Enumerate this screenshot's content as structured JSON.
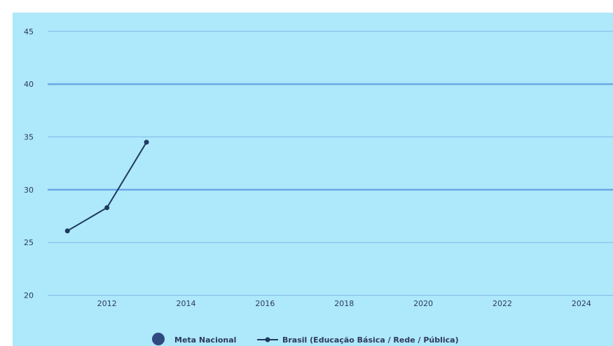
{
  "chart_data": {
    "type": "line",
    "title": "",
    "xlabel": "",
    "ylabel": "",
    "xlim": [
      2010.5,
      2024.8
    ],
    "ylim": [
      20,
      46.5
    ],
    "x_ticks": [
      2012,
      2014,
      2016,
      2018,
      2020,
      2022,
      2024
    ],
    "y_ticks": [
      20,
      25,
      30,
      35,
      40,
      45
    ],
    "grid": true,
    "legend_position": "bottom-center",
    "colors": {
      "plot_background": "#aee8fb",
      "gridline": "#7fb8ea",
      "gridline_major": "#6aa8e6",
      "series_line": "#1e3a5f",
      "meta_marker": "#2e4a7e",
      "text": "#2d3a5a"
    },
    "series": [
      {
        "name": "Meta Nacional",
        "marker": "circle",
        "x": [],
        "y": []
      },
      {
        "name": "Brasil (Educação Básica / Rede / Pública)",
        "marker": "line-dot",
        "x": [
          2011,
          2012,
          2013
        ],
        "y": [
          26.1,
          28.3,
          34.5
        ]
      }
    ]
  }
}
